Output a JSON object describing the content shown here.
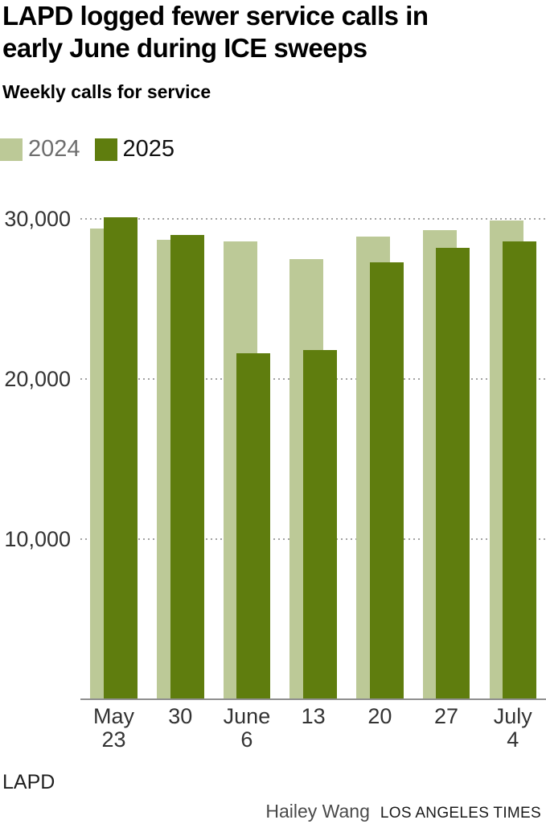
{
  "header": {
    "title_lines": [
      "LAPD logged fewer service calls in",
      "early June during ICE sweeps"
    ],
    "subtitle": "Weekly calls for service"
  },
  "legend": [
    {
      "label": "2024",
      "color": "#bcc997",
      "text_color": "#6e6e6e"
    },
    {
      "label": "2025",
      "color": "#5f7d0e",
      "text_color": "#111111"
    }
  ],
  "chart_data": {
    "type": "bar",
    "title": "LAPD logged fewer service calls in early June during ICE sweeps",
    "subtitle": "Weekly calls for service",
    "categories": [
      "May 23",
      "30",
      "June 6",
      "13",
      "20",
      "27",
      "July 4"
    ],
    "category_tick_lines": [
      [
        "May",
        "23"
      ],
      [
        "30"
      ],
      [
        "June",
        "6"
      ],
      [
        "13"
      ],
      [
        "20"
      ],
      [
        "27"
      ],
      [
        "July",
        "4"
      ]
    ],
    "series": [
      {
        "name": "2024",
        "color": "#bcc997",
        "values": [
          29400,
          28700,
          28600,
          27500,
          28900,
          29300,
          29900
        ]
      },
      {
        "name": "2025",
        "color": "#5f7d0e",
        "values": [
          30100,
          29000,
          21600,
          21800,
          27300,
          28200,
          28600
        ]
      }
    ],
    "xlabel": "",
    "ylabel": "Weekly calls for service",
    "y_ticks": [
      10000,
      20000,
      30000
    ],
    "y_tick_labels": [
      "10,000",
      "20,000",
      "30,000"
    ],
    "ylim": [
      0,
      31000
    ],
    "grid": "horizontal-dotted",
    "grid_color": "#a2a2a2",
    "axis_color": "#8f8f8f",
    "legend_position": "top-left",
    "bar_layout": "overlapping-pairs"
  },
  "footer": {
    "source": "LAPD",
    "credit_author": "Hailey Wang",
    "credit_org": "LOS ANGELES TIMES"
  }
}
